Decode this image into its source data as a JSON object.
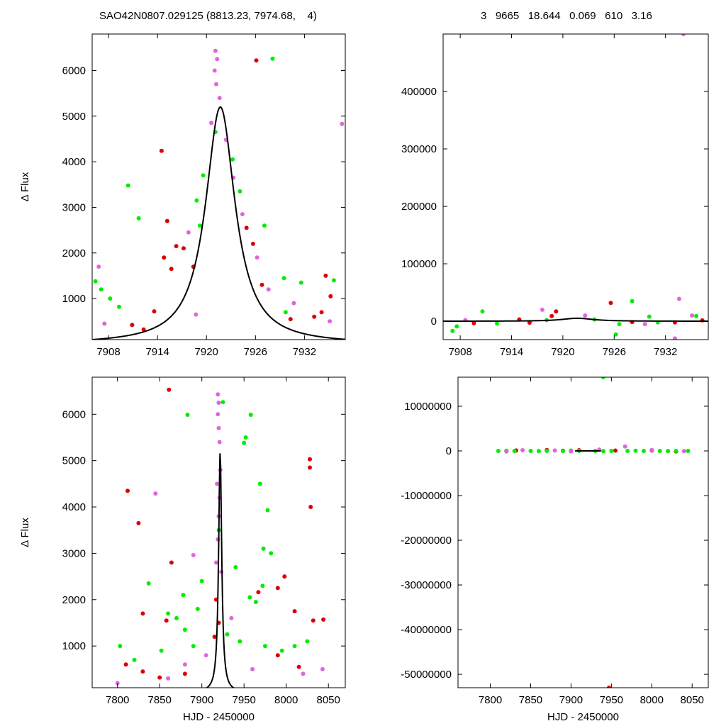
{
  "header": {
    "left_title": "SAO42N0807.029125 (8813.23, 7974.68,    4)",
    "right_title": "3   9665   18.644   0.069   610   3.16"
  },
  "colors": {
    "series_a": "#dd0000",
    "series_b": "#00ee00",
    "series_c": "#dd66dd",
    "model": "#000000"
  },
  "chart_data": [
    {
      "type": "scatter",
      "position": "top-left",
      "xlabel": "",
      "ylabel": "Δ Flux",
      "xlim": [
        7906,
        7937
      ],
      "ylim": [
        100,
        6800
      ],
      "xticks": [
        7908,
        7914,
        7920,
        7926,
        7932
      ],
      "xtick_labels": [
        "7908",
        "7914",
        "7920",
        "7926",
        "7932"
      ],
      "yticks": [
        1000,
        2000,
        3000,
        4000,
        5000,
        6000
      ],
      "ytick_labels": [
        "1000",
        "2000",
        "3000",
        "4000",
        "5000",
        "6000"
      ],
      "model_curve": {
        "shape": "lorentzian",
        "center": 7921.7,
        "peak": 5200,
        "half_width": 2.2,
        "baseline": 0
      },
      "series": [
        {
          "color_key": "series_a",
          "points": [
            [
              7914.5,
              4240
            ],
            [
              7926.1,
              6220
            ],
            [
              7915.2,
              2700
            ],
            [
              7916.3,
              2150
            ],
            [
              7913.6,
              720
            ],
            [
              7914.8,
              1900
            ],
            [
              7915.7,
              1650
            ],
            [
              7917.2,
              2100
            ],
            [
              7918.4,
              1700
            ],
            [
              7912.3,
              320
            ],
            [
              7910.9,
              420
            ],
            [
              7933.2,
              600
            ],
            [
              7934.1,
              700
            ],
            [
              7935.2,
              1050
            ],
            [
              7934.6,
              1500
            ],
            [
              7926.8,
              1300
            ],
            [
              7924.9,
              2550
            ],
            [
              7925.7,
              2200
            ],
            [
              7930.3,
              550
            ]
          ]
        },
        {
          "color_key": "series_b",
          "points": [
            [
              7910.4,
              3480
            ],
            [
              7911.7,
              2760
            ],
            [
              7928.1,
              6260
            ],
            [
              7907.1,
              1200
            ],
            [
              7908.2,
              1000
            ],
            [
              7909.3,
              820
            ],
            [
              7918.8,
              3150
            ],
            [
              7919.6,
              3700
            ],
            [
              7921.1,
              4650
            ],
            [
              7923.2,
              4050
            ],
            [
              7924.1,
              3350
            ],
            [
              7927.1,
              2600
            ],
            [
              7929.5,
              1450
            ],
            [
              7931.6,
              1350
            ],
            [
              7935.6,
              1400
            ],
            [
              7906.4,
              1380
            ],
            [
              7929.7,
              700
            ],
            [
              7919.2,
              2600
            ]
          ]
        },
        {
          "color_key": "series_c",
          "points": [
            [
              7921.1,
              6430
            ],
            [
              7921.3,
              6250
            ],
            [
              7921.0,
              6000
            ],
            [
              7921.2,
              5700
            ],
            [
              7921.6,
              5400
            ],
            [
              7920.6,
              4850
            ],
            [
              7922.4,
              4480
            ],
            [
              7923.3,
              3650
            ],
            [
              7924.4,
              2850
            ],
            [
              7906.8,
              1700
            ],
            [
              7936.6,
              4830
            ],
            [
              7927.6,
              1200
            ],
            [
              7930.7,
              900
            ],
            [
              7918.7,
              650
            ],
            [
              7907.5,
              450
            ],
            [
              7935.1,
              500
            ],
            [
              7917.8,
              2450
            ],
            [
              7926.2,
              1900
            ]
          ]
        }
      ]
    },
    {
      "type": "scatter",
      "position": "top-right",
      "xlabel": "",
      "ylabel": "",
      "xlim": [
        7906,
        7937
      ],
      "ylim": [
        -32000,
        500000
      ],
      "xticks": [
        7908,
        7914,
        7920,
        7926,
        7932
      ],
      "xtick_labels": [
        "7908",
        "7914",
        "7920",
        "7926",
        "7932"
      ],
      "yticks": [
        0,
        100000,
        200000,
        300000,
        400000
      ],
      "ytick_labels": [
        "0",
        "100000",
        "200000",
        "300000",
        "400000"
      ],
      "model_curve": {
        "shape": "lorentzian",
        "center": 7921.7,
        "peak": 5200,
        "half_width": 2.2,
        "baseline": 0
      },
      "series": [
        {
          "color_key": "series_a",
          "points": [
            [
              7925.6,
              32000
            ],
            [
              7919.2,
              17000
            ],
            [
              7918.7,
              9000
            ],
            [
              7914.9,
              3000
            ],
            [
              7916.1,
              -2500
            ],
            [
              7909.6,
              -3500
            ],
            [
              7933.1,
              -2000
            ],
            [
              7936.3,
              1500
            ],
            [
              7928.1,
              -1500
            ]
          ]
        },
        {
          "color_key": "series_b",
          "points": [
            [
              7910.6,
              17000
            ],
            [
              7926.2,
              -23000
            ],
            [
              7907.1,
              -17000
            ],
            [
              7907.6,
              -9000
            ],
            [
              7928.1,
              35000
            ],
            [
              7930.1,
              8000
            ],
            [
              7923.7,
              3000
            ],
            [
              7935.6,
              9000
            ],
            [
              7912.3,
              -4000
            ],
            [
              7926.6,
              -5000
            ],
            [
              7931.1,
              -2000
            ],
            [
              7918.1,
              2000
            ]
          ]
        },
        {
          "color_key": "series_c",
          "points": [
            [
              7934.1,
              500000
            ],
            [
              7933.6,
              39000
            ],
            [
              7917.6,
              20000
            ],
            [
              7922.6,
              10000
            ],
            [
              7935.1,
              10000
            ],
            [
              7933.1,
              -30000
            ],
            [
              7929.6,
              -5000
            ],
            [
              7908.6,
              2000
            ]
          ]
        }
      ]
    },
    {
      "type": "scatter",
      "position": "bottom-left",
      "xlabel": "HJD - 2450000",
      "ylabel": "Δ Flux",
      "xlim": [
        7770,
        8070
      ],
      "ylim": [
        100,
        6800
      ],
      "xticks": [
        7800,
        7850,
        7900,
        7950,
        8000,
        8050
      ],
      "xtick_labels": [
        "7800",
        "7850",
        "7900",
        "7950",
        "8000",
        "8050"
      ],
      "yticks": [
        1000,
        2000,
        3000,
        4000,
        5000,
        6000
      ],
      "ytick_labels": [
        "1000",
        "2000",
        "3000",
        "4000",
        "5000",
        "6000"
      ],
      "model_curve": {
        "shape": "lorentzian",
        "center": 7921.7,
        "peak": 5200,
        "half_width": 2.2,
        "baseline": 0
      },
      "series": [
        {
          "color_key": "series_a",
          "points": [
            [
              7861,
              6530
            ],
            [
              7812,
              4350
            ],
            [
              7825,
              3650
            ],
            [
              7864,
              2800
            ],
            [
              7830,
              1700
            ],
            [
              7858,
              1550
            ],
            [
              8028,
              5030
            ],
            [
              8028,
              4850
            ],
            [
              8029,
              4000
            ],
            [
              7998,
              2500
            ],
            [
              7990,
              2250
            ],
            [
              7967,
              2160
            ],
            [
              8010,
              1750
            ],
            [
              8032,
              1550
            ],
            [
              8044,
              1570
            ],
            [
              7917,
              2000
            ],
            [
              7920,
              1500
            ],
            [
              7915,
              1200
            ],
            [
              7830,
              450
            ],
            [
              7850,
              320
            ],
            [
              7810,
              600
            ],
            [
              7880,
              400
            ],
            [
              7990,
              800
            ],
            [
              8015,
              550
            ]
          ]
        },
        {
          "color_key": "series_b",
          "points": [
            [
              7883,
              5990
            ],
            [
              7925,
              6260
            ],
            [
              7958,
              5990
            ],
            [
              7952,
              5500
            ],
            [
              7950,
              5380
            ],
            [
              7969,
              4500
            ],
            [
              7978,
              3930
            ],
            [
              7973,
              3100
            ],
            [
              7982,
              3000
            ],
            [
              7940,
              2700
            ],
            [
              7900,
              2400
            ],
            [
              7957,
              2050
            ],
            [
              7972,
              2300
            ],
            [
              7964,
              1950
            ],
            [
              7837,
              2350
            ],
            [
              7860,
              1700
            ],
            [
              7870,
              1600
            ],
            [
              7895,
              1800
            ],
            [
              7880,
              1350
            ],
            [
              7890,
              1000
            ],
            [
              7852,
              900
            ],
            [
              7945,
              1100
            ],
            [
              7930,
              1250
            ],
            [
              7975,
              1000
            ],
            [
              7995,
              900
            ],
            [
              8010,
              1000
            ],
            [
              8025,
              1100
            ],
            [
              7820,
              700
            ],
            [
              7803,
              1000
            ],
            [
              7878,
              2100
            ],
            [
              7920,
              3500
            ]
          ]
        },
        {
          "color_key": "series_c",
          "points": [
            [
              7919,
              6430
            ],
            [
              7920,
              6250
            ],
            [
              7919,
              6000
            ],
            [
              7920,
              5700
            ],
            [
              7921,
              5400
            ],
            [
              7922,
              4800
            ],
            [
              7918,
              4500
            ],
            [
              7921,
              4200
            ],
            [
              7920,
              3800
            ],
            [
              7919,
              3300
            ],
            [
              7845,
              4290
            ],
            [
              7890,
              2960
            ],
            [
              7917,
              2800
            ],
            [
              7923,
              2600
            ],
            [
              7935,
              1600
            ],
            [
              7880,
              600
            ],
            [
              7960,
              500
            ],
            [
              8043,
              500
            ],
            [
              7800,
              200
            ],
            [
              7860,
              300
            ],
            [
              8020,
              400
            ],
            [
              7905,
              800
            ]
          ]
        }
      ]
    },
    {
      "type": "scatter",
      "position": "bottom-right",
      "xlabel": "HJD - 2450000",
      "ylabel": "",
      "xlim": [
        7760,
        8070
      ],
      "ylim": [
        -53000000,
        16500000
      ],
      "xticks": [
        7800,
        7850,
        7900,
        7950,
        8000,
        8050
      ],
      "xtick_labels": [
        "7800",
        "7850",
        "7900",
        "7950",
        "8000",
        "8050"
      ],
      "yticks": [
        10000000,
        0,
        -10000000,
        -20000000,
        -30000000,
        -40000000,
        -50000000
      ],
      "ytick_labels": [
        "10000000",
        "0",
        "-10000000",
        "-20000000",
        "-30000000",
        "-40000000",
        "-50000000"
      ],
      "model_curve": {
        "shape": "flat",
        "x_range": [
          7905,
          7937
        ],
        "value": 0
      },
      "series": [
        {
          "color_key": "series_a",
          "points": [
            [
              7947,
              -53000000
            ],
            [
              7832,
              100000
            ],
            [
              7870,
              200000
            ],
            [
              7910,
              150000
            ],
            [
              7955,
              80000
            ],
            [
              8000,
              100000
            ],
            [
              8030,
              -100000
            ],
            [
              7820,
              -80000
            ],
            [
              7890,
              50000
            ]
          ]
        },
        {
          "color_key": "series_b",
          "points": [
            [
              7940,
              16500000
            ],
            [
              7810,
              0
            ],
            [
              7830,
              0
            ],
            [
              7850,
              0
            ],
            [
              7870,
              0
            ],
            [
              7890,
              0
            ],
            [
              7910,
              0
            ],
            [
              7930,
              0
            ],
            [
              7950,
              0
            ],
            [
              7970,
              0
            ],
            [
              7990,
              0
            ],
            [
              8010,
              0
            ],
            [
              8030,
              0
            ],
            [
              8045,
              0
            ],
            [
              7820,
              50000
            ],
            [
              7860,
              -50000
            ],
            [
              7900,
              80000
            ],
            [
              7940,
              -60000
            ],
            [
              7980,
              40000
            ],
            [
              8020,
              -30000
            ]
          ]
        },
        {
          "color_key": "series_c",
          "points": [
            [
              7967,
              1000000
            ],
            [
              7935,
              300000
            ],
            [
              7840,
              150000
            ],
            [
              7900,
              -100000
            ],
            [
              8000,
              200000
            ],
            [
              7820,
              -150000
            ],
            [
              7880,
              100000
            ],
            [
              8040,
              -50000
            ]
          ]
        }
      ]
    }
  ]
}
